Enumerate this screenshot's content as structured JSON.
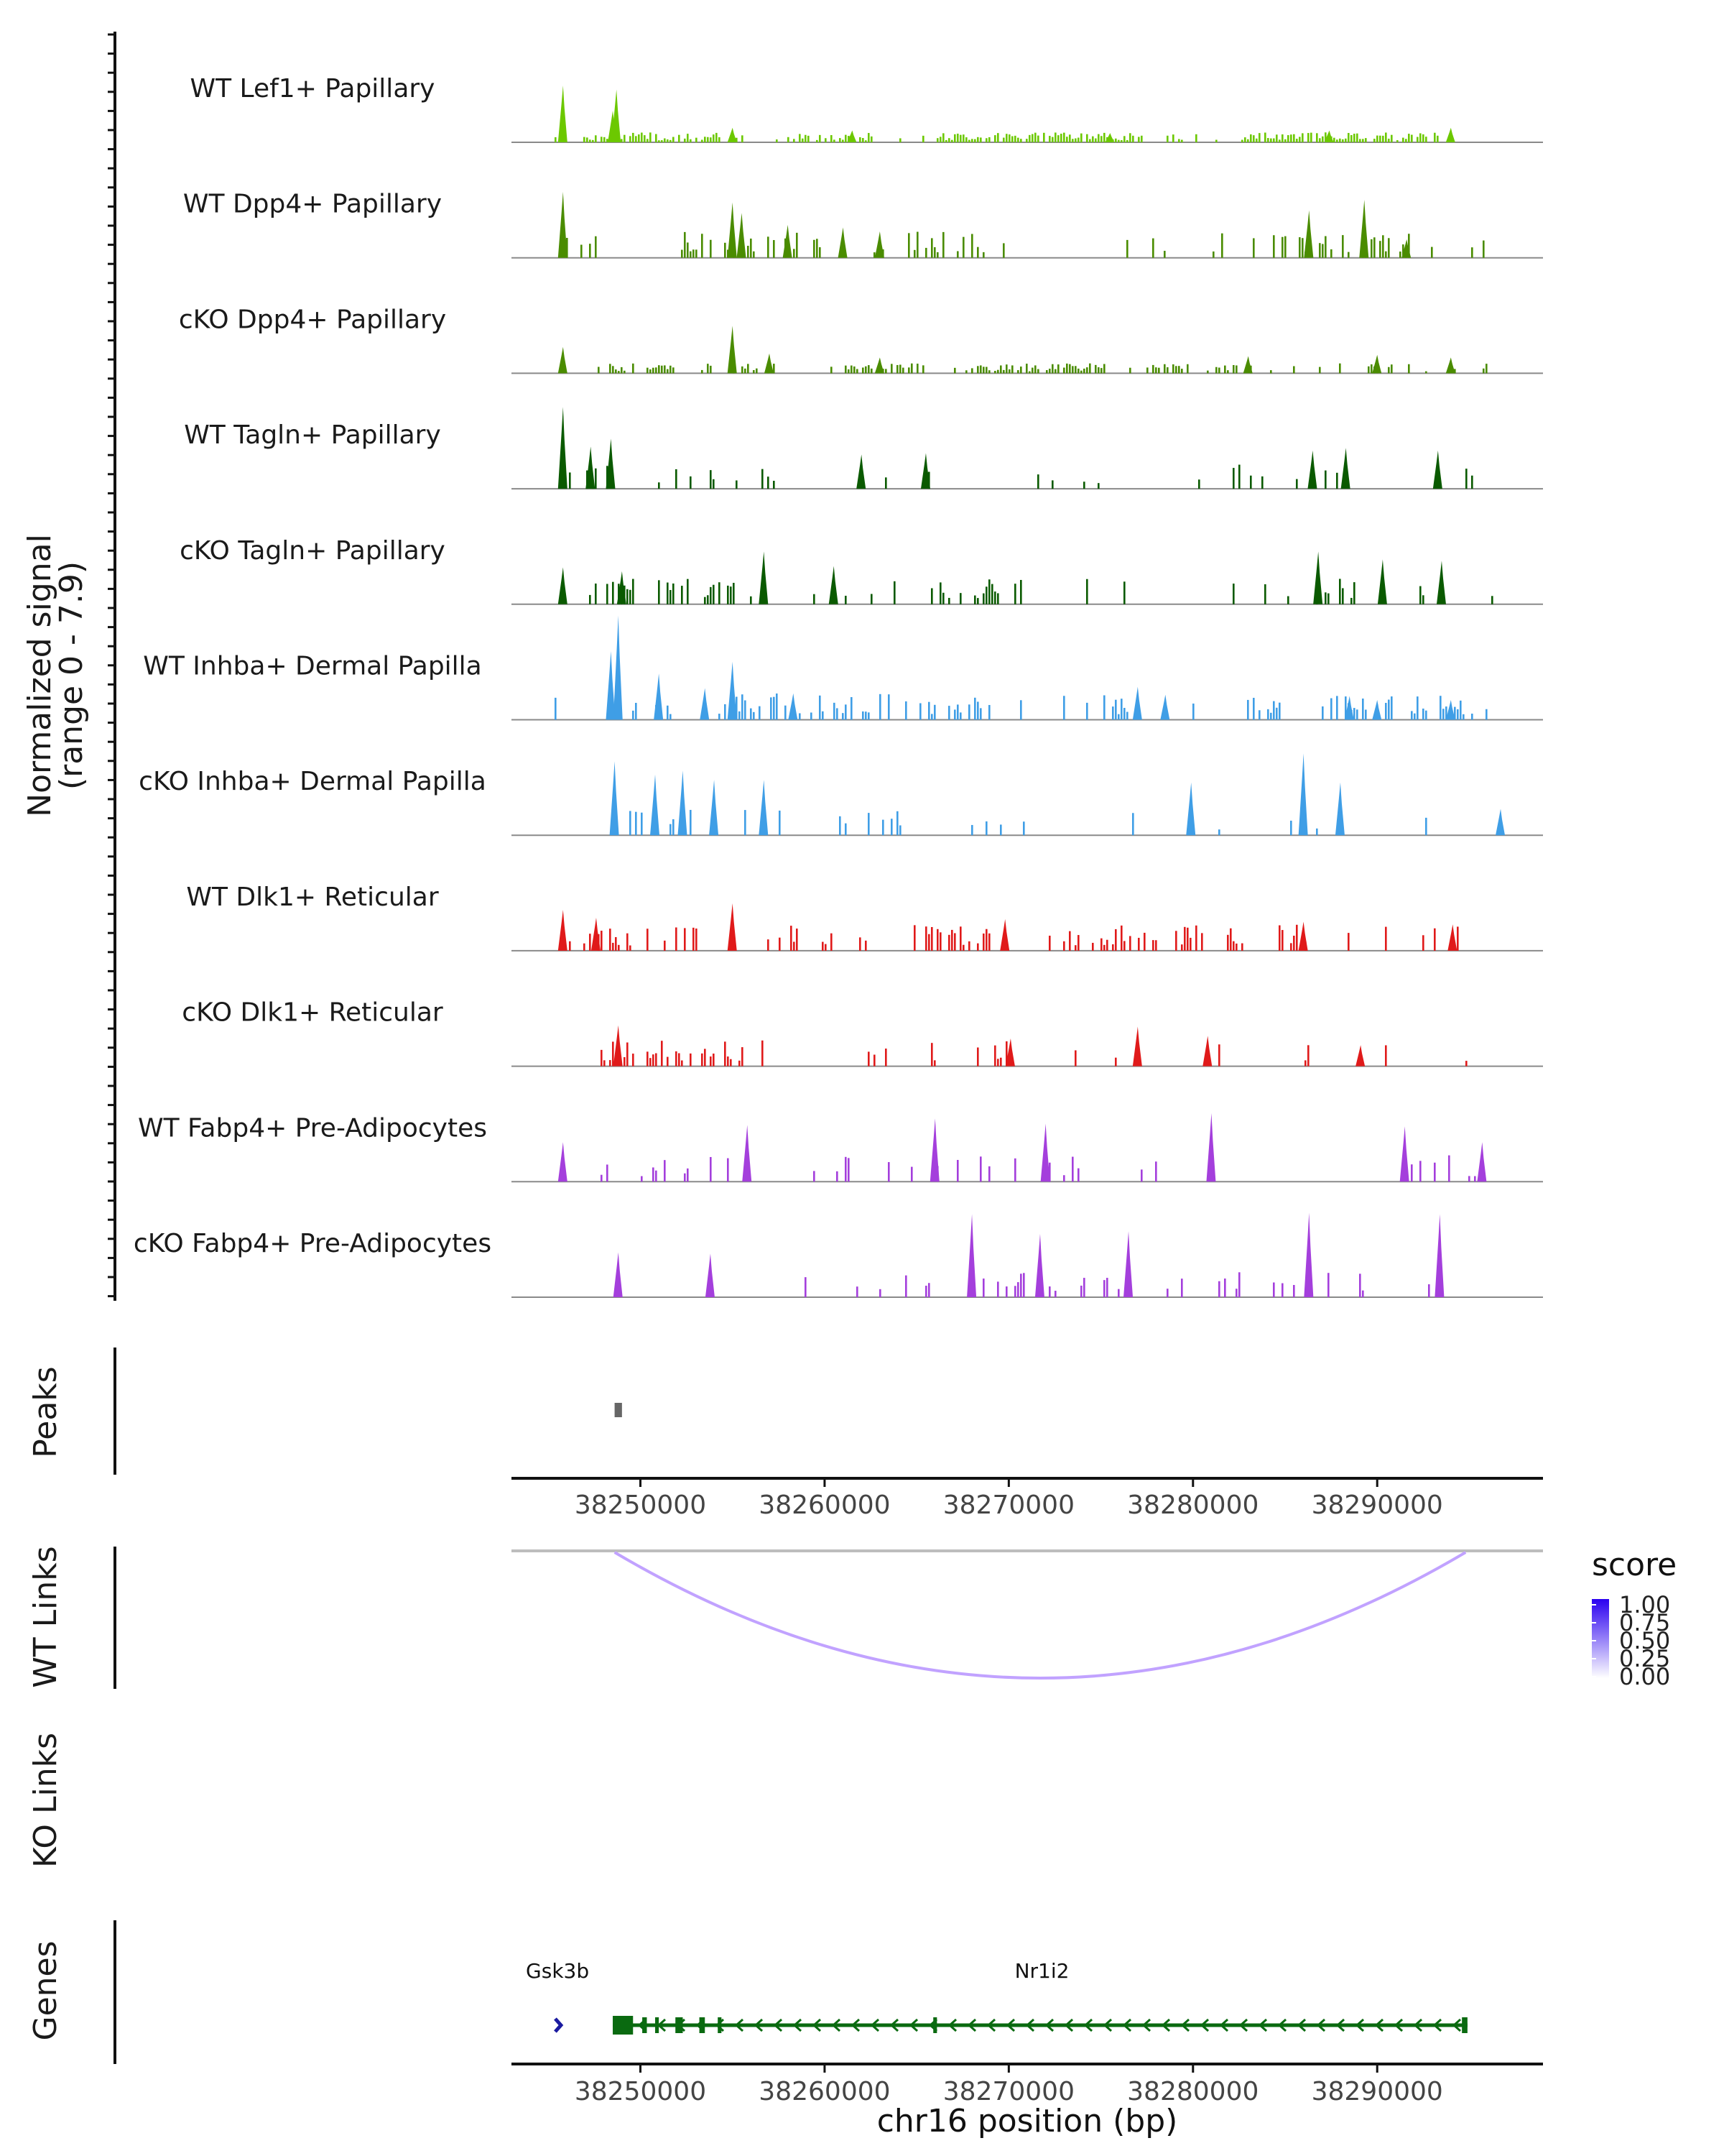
{
  "chart_data": {
    "type": "coverage-track",
    "ylabel_line1": "Normalized signal",
    "ylabel_line2": "(range 0 - 7.9)",
    "y_range": [
      0,
      7.9
    ],
    "x_range": [
      38243000,
      38299000
    ],
    "xlabel": "chr16 position (bp)",
    "x_ticks": [
      38250000,
      38260000,
      38270000,
      38280000,
      38290000
    ],
    "x_tick_labels": [
      "38250000",
      "38260000",
      "38270000",
      "38280000",
      "38290000"
    ],
    "tracks": [
      {
        "name": "WT Lef1+ Papillary",
        "color": "#6cc800",
        "style": "dense",
        "peaks": [
          [
            38245800,
            4.3
          ],
          [
            38248700,
            4.0
          ],
          [
            38248500,
            2.4
          ],
          [
            38255000,
            1.1
          ],
          [
            38261500,
            0.9
          ],
          [
            38275500,
            0.7
          ],
          [
            38287400,
            0.9
          ],
          [
            38294000,
            1.1
          ]
        ]
      },
      {
        "name": "WT Dpp4+ Papillary",
        "color": "#4a8c00",
        "style": "mid",
        "peaks": [
          [
            38245800,
            5.0
          ],
          [
            38255000,
            4.2
          ],
          [
            38255500,
            3.4
          ],
          [
            38258000,
            2.5
          ],
          [
            38261000,
            2.3
          ],
          [
            38263000,
            2.0
          ],
          [
            38286300,
            3.6
          ],
          [
            38289300,
            4.4
          ],
          [
            38291600,
            1.4
          ]
        ]
      },
      {
        "name": "cKO Dpp4+ Papillary",
        "color": "#4a8c00",
        "style": "dense",
        "peaks": [
          [
            38245800,
            2.0
          ],
          [
            38255000,
            3.6
          ],
          [
            38257000,
            1.5
          ],
          [
            38263000,
            1.2
          ],
          [
            38283000,
            1.3
          ],
          [
            38290000,
            1.4
          ],
          [
            38294000,
            1.2
          ]
        ]
      },
      {
        "name": "WT Tagln+ Papillary",
        "color": "#0a5a00",
        "style": "sparse",
        "peaks": [
          [
            38245800,
            6.2
          ],
          [
            38248400,
            3.8
          ],
          [
            38247300,
            3.2
          ],
          [
            38262000,
            2.6
          ],
          [
            38265500,
            2.7
          ],
          [
            38286500,
            2.9
          ],
          [
            38288300,
            3.1
          ],
          [
            38293300,
            2.9
          ]
        ]
      },
      {
        "name": "cKO Tagln+ Papillary",
        "color": "#0a5a00",
        "style": "mid",
        "peaks": [
          [
            38245800,
            2.8
          ],
          [
            38249000,
            2.5
          ],
          [
            38256700,
            4.0
          ],
          [
            38260500,
            2.9
          ],
          [
            38286800,
            4.0
          ],
          [
            38290300,
            3.4
          ],
          [
            38293500,
            3.3
          ]
        ]
      },
      {
        "name": "WT Inhba+ Dermal Papilla",
        "color": "#3f9ee6",
        "style": "mid",
        "peaks": [
          [
            38248800,
            10.0
          ],
          [
            38248400,
            5.2
          ],
          [
            38251000,
            3.5
          ],
          [
            38253500,
            2.4
          ],
          [
            38255000,
            4.4
          ],
          [
            38258300,
            2.0
          ],
          [
            38277000,
            2.5
          ],
          [
            38278500,
            1.9
          ],
          [
            38288500,
            1.8
          ],
          [
            38290000,
            1.5
          ],
          [
            38294000,
            1.5
          ]
        ]
      },
      {
        "name": "cKO Inhba+ Dermal Papilla",
        "color": "#3f9ee6",
        "style": "sparse",
        "peaks": [
          [
            38248600,
            5.6
          ],
          [
            38250800,
            4.6
          ],
          [
            38252300,
            4.9
          ],
          [
            38254000,
            4.2
          ],
          [
            38256700,
            4.2
          ],
          [
            38279900,
            4.0
          ],
          [
            38286000,
            6.2
          ],
          [
            38288000,
            4.0
          ],
          [
            38296700,
            2.0
          ]
        ]
      },
      {
        "name": "WT Dlk1+ Reticular",
        "color": "#e01a1a",
        "style": "mid",
        "peaks": [
          [
            38245800,
            3.1
          ],
          [
            38247600,
            2.5
          ],
          [
            38255000,
            3.6
          ],
          [
            38269800,
            2.4
          ],
          [
            38286000,
            2.2
          ],
          [
            38294100,
            2.0
          ]
        ]
      },
      {
        "name": "cKO Dlk1+ Reticular",
        "color": "#e01a1a",
        "style": "mid",
        "peaks": [
          [
            38248800,
            3.1
          ],
          [
            38270100,
            2.1
          ],
          [
            38277000,
            3.0
          ],
          [
            38280800,
            2.3
          ],
          [
            38289100,
            1.6
          ]
        ]
      },
      {
        "name": "WT Fabp4+ Pre-Adipocytes",
        "color": "#a43fdc",
        "style": "sparse",
        "peaks": [
          [
            38245800,
            3.0
          ],
          [
            38255800,
            4.3
          ],
          [
            38266000,
            4.8
          ],
          [
            38272000,
            4.4
          ],
          [
            38281000,
            5.2
          ],
          [
            38291500,
            4.2
          ],
          [
            38295700,
            3.0
          ]
        ]
      },
      {
        "name": "cKO Fabp4+ Pre-Adipocytes",
        "color": "#a43fdc",
        "style": "sparse",
        "peaks": [
          [
            38248800,
            3.4
          ],
          [
            38253800,
            3.3
          ],
          [
            38268000,
            6.3
          ],
          [
            38271700,
            4.8
          ],
          [
            38276500,
            5.0
          ],
          [
            38286300,
            6.4
          ],
          [
            38293400,
            6.3
          ]
        ]
      }
    ],
    "peaks_track": {
      "label": "Peaks",
      "color": "#666666",
      "regions": [
        [
          38248600,
          38249000
        ]
      ]
    },
    "wt_links": {
      "label": "WT Links",
      "links": [
        {
          "start": 38248600,
          "end": 38294800,
          "score": 0.25
        }
      ]
    },
    "ko_links": {
      "label": "KO Links",
      "links": []
    },
    "links_legend": {
      "title": "score",
      "ticks": [
        "1.00",
        "0.75",
        "0.50",
        "0.25",
        "0.00"
      ],
      "color_low": "#ffffff",
      "color_high": "#2a00f0"
    },
    "genes": {
      "label": "Genes",
      "items": [
        {
          "name": "Gsk3b",
          "start": 38243000,
          "end": 38246000,
          "strand": "+",
          "color": "#1a1aa0",
          "label_x": 38245500
        },
        {
          "name": "Nr1i2",
          "start": 38248500,
          "end": 38294900,
          "strand": "-",
          "color": "#0a6a10",
          "label_x": 38271800,
          "exons": [
            [
              38248500,
              38249600
            ],
            [
              38250100,
              38250350
            ],
            [
              38250800,
              38251000
            ],
            [
              38251900,
              38252300
            ],
            [
              38253200,
              38253500
            ],
            [
              38254200,
              38254400
            ],
            [
              38265900,
              38266100
            ],
            [
              38294600,
              38294900
            ]
          ]
        }
      ]
    }
  }
}
